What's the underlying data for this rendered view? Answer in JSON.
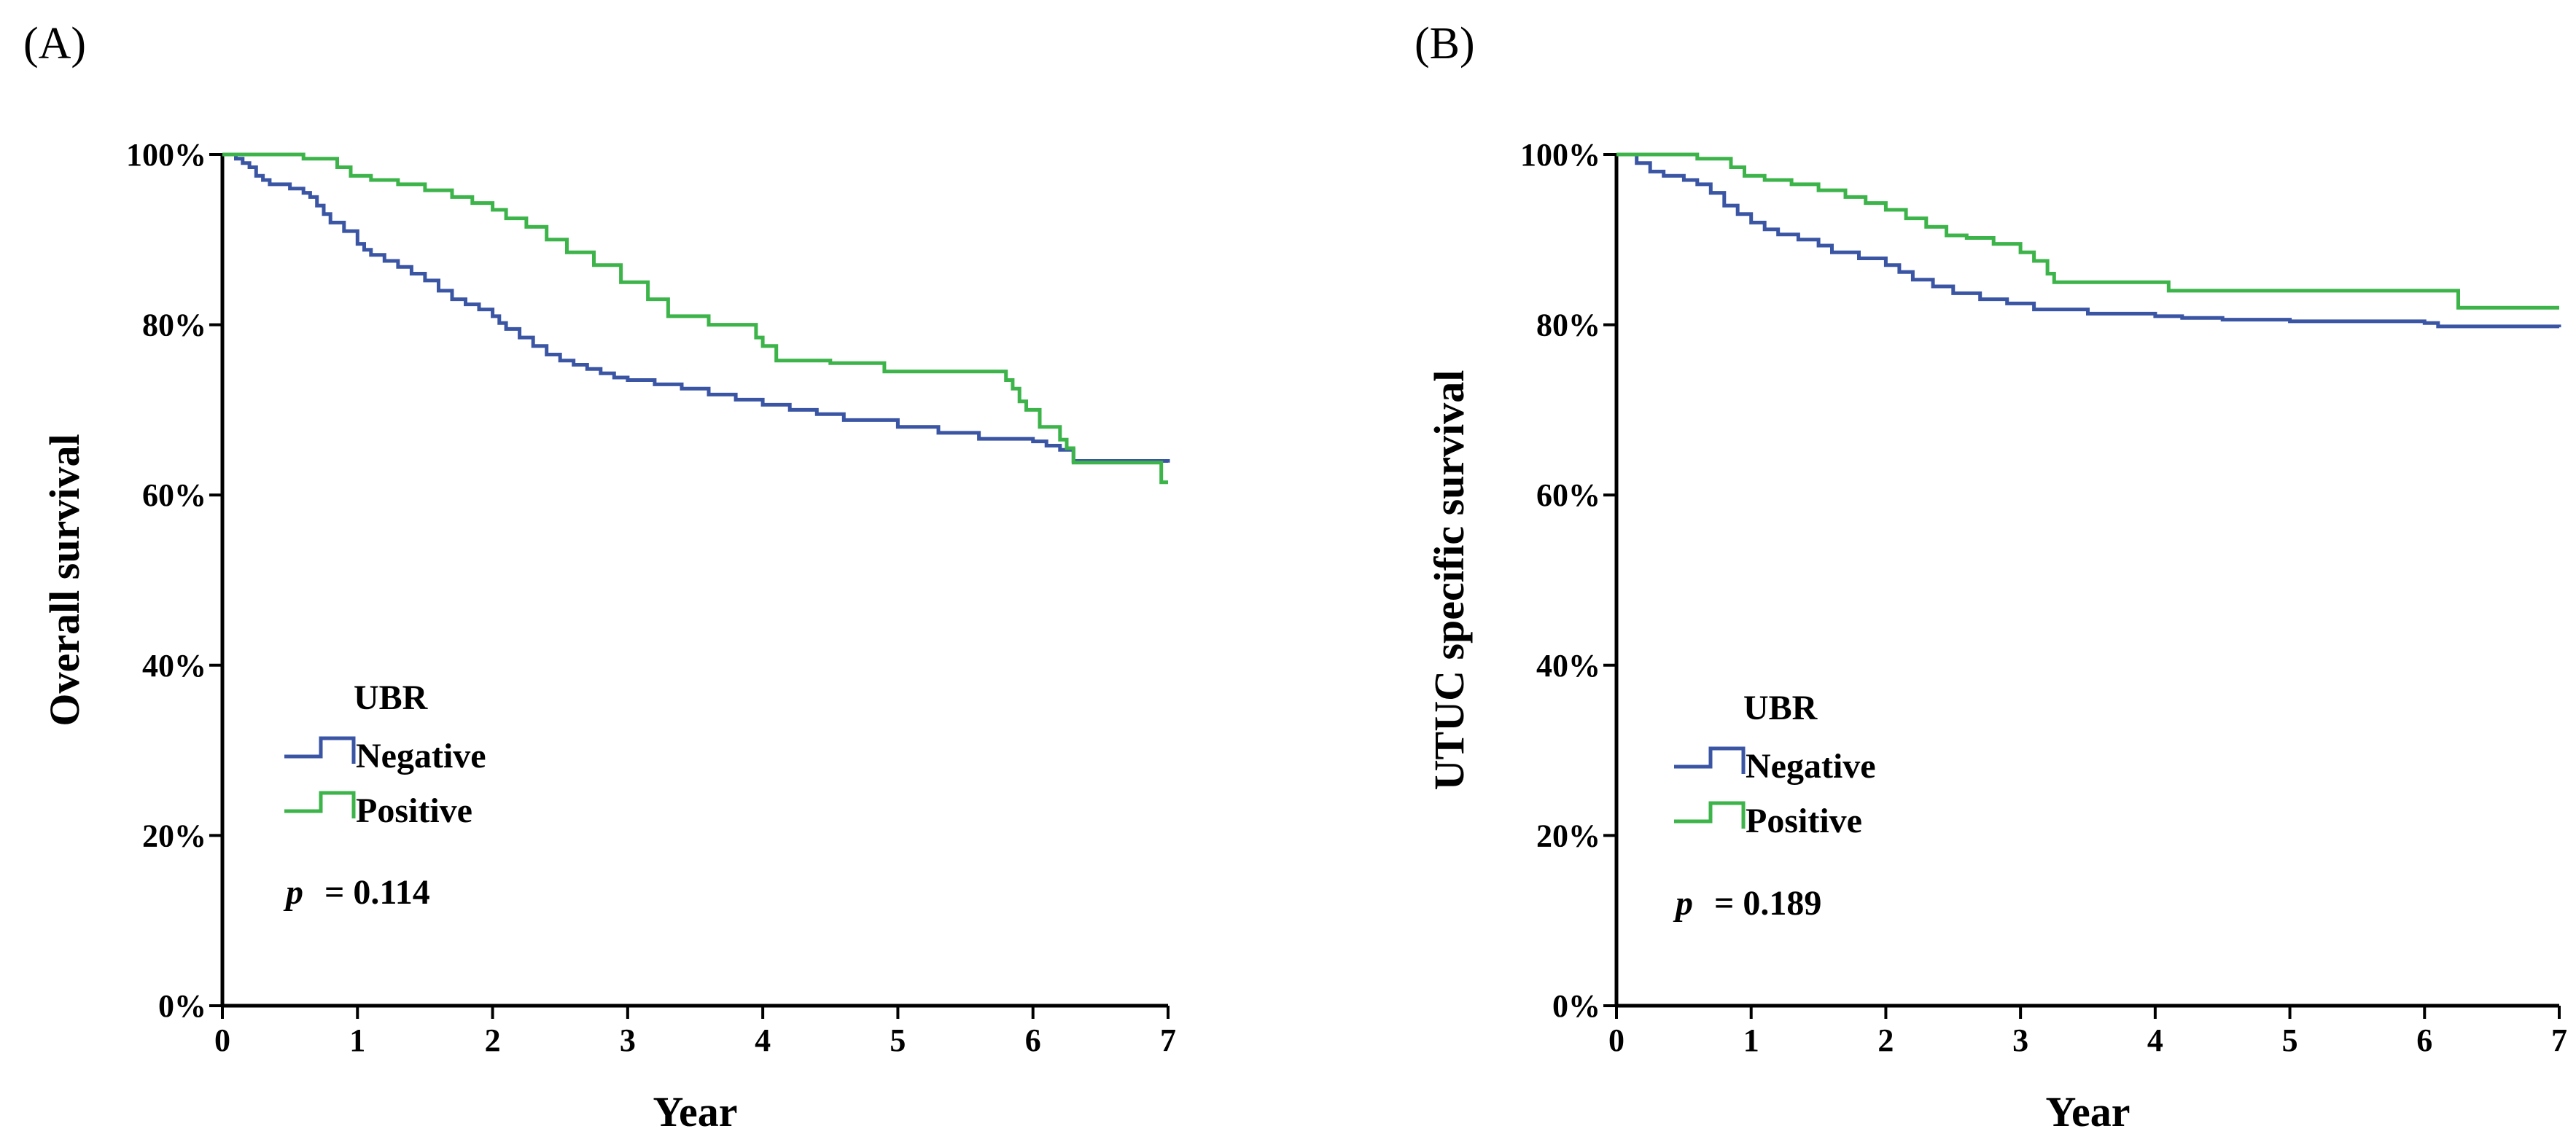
{
  "colors": {
    "negative": "#3a55a4",
    "positive": "#3cb44a",
    "axis": "#000000",
    "background": "#ffffff"
  },
  "chart_data": [
    {
      "type": "line",
      "subtype": "kaplan-meier",
      "panel_label": "(A)",
      "xlabel": "Year",
      "ylabel": "Overall survival",
      "xlim": [
        0,
        7
      ],
      "ylim": [
        0,
        100
      ],
      "x_ticks": [
        "0",
        "1",
        "2",
        "3",
        "4",
        "5",
        "6",
        "7"
      ],
      "y_ticks": [
        "0%",
        "20%",
        "40%",
        "60%",
        "80%",
        "100%"
      ],
      "legend": {
        "title": "UBR",
        "entries": [
          "Negative",
          "Positive"
        ],
        "placement": "lower-left"
      },
      "annotation": {
        "p_symbol": "p",
        "p_text": "= 0.114"
      },
      "series": [
        {
          "name": "Negative",
          "color_key": "negative",
          "x": [
            0,
            0.1,
            0.15,
            0.2,
            0.25,
            0.3,
            0.35,
            0.5,
            0.6,
            0.65,
            0.7,
            0.75,
            0.8,
            0.9,
            1.0,
            1.05,
            1.1,
            1.2,
            1.3,
            1.4,
            1.5,
            1.6,
            1.7,
            1.8,
            1.9,
            2.0,
            2.05,
            2.1,
            2.2,
            2.3,
            2.4,
            2.5,
            2.6,
            2.7,
            2.8,
            2.9,
            3.0,
            3.2,
            3.4,
            3.6,
            3.8,
            4.0,
            4.2,
            4.4,
            4.6,
            5.0,
            5.3,
            5.6,
            6.0,
            6.1,
            6.2,
            6.3,
            7.0
          ],
          "y": [
            100,
            99.5,
            99,
            98.5,
            97.5,
            97,
            96.5,
            96,
            95.5,
            95,
            94,
            93,
            92,
            91,
            89.5,
            88.8,
            88.2,
            87.5,
            86.8,
            86,
            85.2,
            84,
            83,
            82.4,
            81.8,
            81,
            80.2,
            79.5,
            78.5,
            77.5,
            76.5,
            75.8,
            75.3,
            74.8,
            74.3,
            73.8,
            73.5,
            73,
            72.5,
            71.8,
            71.2,
            70.6,
            70,
            69.5,
            68.8,
            68,
            67.3,
            66.6,
            66.3,
            65.8,
            65.3,
            64,
            63.8
          ]
        },
        {
          "name": "Positive",
          "color_key": "positive",
          "x": [
            0,
            0.6,
            0.85,
            0.95,
            1.1,
            1.3,
            1.5,
            1.7,
            1.85,
            2.0,
            2.1,
            2.25,
            2.4,
            2.55,
            2.75,
            2.95,
            3.15,
            3.3,
            3.6,
            3.95,
            4.0,
            4.1,
            4.5,
            4.9,
            5.8,
            5.85,
            5.9,
            5.95,
            6.05,
            6.2,
            6.25,
            6.3,
            6.95,
            7.0
          ],
          "y": [
            100,
            99.5,
            98.5,
            97.5,
            97,
            96.5,
            95.8,
            95,
            94.3,
            93.5,
            92.5,
            91.5,
            90,
            88.5,
            87,
            85,
            83,
            81,
            80,
            78.5,
            77.5,
            75.8,
            75.5,
            74.5,
            73.5,
            72.5,
            71,
            70,
            68,
            66.5,
            65.5,
            63.8,
            61.5,
            61.5
          ]
        }
      ]
    },
    {
      "type": "line",
      "subtype": "kaplan-meier",
      "panel_label": "(B)",
      "xlabel": "Year",
      "ylabel": "UTUC specific survival",
      "xlim": [
        0,
        7
      ],
      "ylim": [
        0,
        100
      ],
      "x_ticks": [
        "0",
        "1",
        "2",
        "3",
        "4",
        "5",
        "6",
        "7"
      ],
      "y_ticks": [
        "0%",
        "20%",
        "40%",
        "60%",
        "80%",
        "100%"
      ],
      "legend": {
        "title": "UBR",
        "entries": [
          "Negative",
          "Positive"
        ],
        "placement": "lower-left"
      },
      "annotation": {
        "p_symbol": "p",
        "p_text": "= 0.189"
      },
      "series": [
        {
          "name": "Negative",
          "color_key": "negative",
          "x": [
            0,
            0.15,
            0.25,
            0.35,
            0.5,
            0.6,
            0.7,
            0.8,
            0.9,
            1.0,
            1.1,
            1.2,
            1.35,
            1.5,
            1.6,
            1.8,
            2.0,
            2.1,
            2.2,
            2.35,
            2.5,
            2.7,
            2.9,
            3.1,
            3.5,
            4.0,
            4.2,
            4.5,
            5.0,
            6.0,
            6.1,
            7.0
          ],
          "y": [
            100,
            99,
            98,
            97.5,
            97,
            96.5,
            95.5,
            94,
            93,
            92,
            91.2,
            90.6,
            90,
            89.3,
            88.5,
            87.8,
            87,
            86.2,
            85.3,
            84.5,
            83.7,
            83,
            82.5,
            81.8,
            81.3,
            81,
            80.8,
            80.6,
            80.4,
            80.2,
            79.8,
            79.7
          ]
        },
        {
          "name": "Positive",
          "color_key": "positive",
          "x": [
            0,
            0.6,
            0.85,
            0.95,
            1.1,
            1.3,
            1.5,
            1.7,
            1.85,
            2.0,
            2.15,
            2.3,
            2.45,
            2.6,
            2.8,
            3.0,
            3.1,
            3.2,
            3.25,
            4.0,
            4.1,
            6.2,
            6.25,
            7.0
          ],
          "y": [
            100,
            99.5,
            98.5,
            97.5,
            97,
            96.5,
            95.8,
            95,
            94.3,
            93.5,
            92.5,
            91.5,
            90.5,
            90.2,
            89.5,
            88.5,
            87.5,
            86,
            85,
            85,
            84,
            84,
            82,
            82
          ]
        }
      ]
    }
  ]
}
